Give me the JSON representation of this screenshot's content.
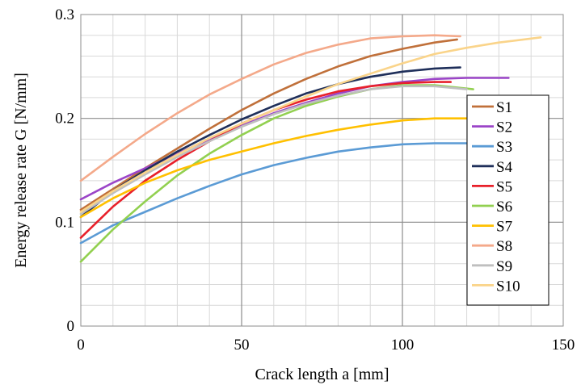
{
  "chart_data": {
    "type": "line",
    "title": "",
    "xlabel": "Crack length a [mm]",
    "ylabel": "Energy release rate G [N/mm]",
    "xlim": [
      0,
      150
    ],
    "ylim": [
      0,
      0.3
    ],
    "x_ticks": [
      0,
      50,
      100,
      150
    ],
    "y_ticks": [
      0,
      0.1,
      0.2,
      0.3
    ],
    "x_tick_labels": [
      "0",
      "50",
      "100",
      "150"
    ],
    "y_tick_labels": [
      "0",
      "0.1",
      "0.2",
      "0.3"
    ],
    "grid": true,
    "legend_position": "right",
    "series": [
      {
        "name": "S1",
        "color": "#C0703A",
        "x": [
          0,
          10,
          20,
          30,
          40,
          50,
          60,
          70,
          80,
          90,
          100,
          110,
          117
        ],
        "y": [
          0.112,
          0.132,
          0.152,
          0.171,
          0.19,
          0.208,
          0.224,
          0.238,
          0.25,
          0.26,
          0.267,
          0.273,
          0.276
        ]
      },
      {
        "name": "S2",
        "color": "#9B45C8",
        "x": [
          0,
          10,
          20,
          30,
          40,
          50,
          60,
          70,
          80,
          90,
          100,
          110,
          120,
          133
        ],
        "y": [
          0.122,
          0.138,
          0.152,
          0.166,
          0.18,
          0.193,
          0.205,
          0.215,
          0.224,
          0.231,
          0.235,
          0.238,
          0.239,
          0.239
        ]
      },
      {
        "name": "S3",
        "color": "#5B9BD5",
        "x": [
          0,
          10,
          20,
          30,
          40,
          50,
          60,
          70,
          80,
          90,
          100,
          110,
          120
        ],
        "y": [
          0.08,
          0.097,
          0.11,
          0.123,
          0.135,
          0.146,
          0.155,
          0.162,
          0.168,
          0.172,
          0.175,
          0.176,
          0.176
        ]
      },
      {
        "name": "S4",
        "color": "#1F2F5A",
        "x": [
          0,
          10,
          20,
          30,
          40,
          50,
          60,
          70,
          80,
          90,
          100,
          110,
          118
        ],
        "y": [
          0.105,
          0.13,
          0.15,
          0.168,
          0.184,
          0.199,
          0.212,
          0.224,
          0.233,
          0.24,
          0.245,
          0.248,
          0.249
        ]
      },
      {
        "name": "S5",
        "color": "#E8202A",
        "x": [
          0,
          10,
          20,
          30,
          40,
          50,
          60,
          70,
          80,
          90,
          100,
          110,
          115
        ],
        "y": [
          0.085,
          0.115,
          0.14,
          0.16,
          0.178,
          0.195,
          0.208,
          0.218,
          0.226,
          0.231,
          0.234,
          0.235,
          0.235
        ]
      },
      {
        "name": "S6",
        "color": "#92D050",
        "x": [
          0,
          10,
          20,
          30,
          40,
          50,
          60,
          70,
          80,
          90,
          100,
          110,
          122
        ],
        "y": [
          0.062,
          0.093,
          0.12,
          0.145,
          0.166,
          0.184,
          0.2,
          0.212,
          0.221,
          0.228,
          0.232,
          0.232,
          0.228
        ]
      },
      {
        "name": "S7",
        "color": "#FFC000",
        "x": [
          0,
          10,
          20,
          30,
          40,
          50,
          60,
          70,
          80,
          90,
          100,
          110,
          120
        ],
        "y": [
          0.105,
          0.123,
          0.138,
          0.15,
          0.16,
          0.168,
          0.176,
          0.183,
          0.189,
          0.194,
          0.198,
          0.2,
          0.2
        ]
      },
      {
        "name": "S8",
        "color": "#F4A98A",
        "x": [
          0,
          10,
          20,
          30,
          40,
          50,
          60,
          70,
          80,
          90,
          100,
          110,
          118
        ],
        "y": [
          0.14,
          0.163,
          0.185,
          0.205,
          0.223,
          0.238,
          0.252,
          0.263,
          0.271,
          0.277,
          0.279,
          0.28,
          0.279
        ]
      },
      {
        "name": "S9",
        "color": "#BFBFBF",
        "x": [
          0,
          10,
          20,
          30,
          40,
          50,
          60,
          70,
          80,
          90,
          100,
          110,
          120
        ],
        "y": [
          0.108,
          0.128,
          0.146,
          0.163,
          0.178,
          0.192,
          0.204,
          0.214,
          0.222,
          0.228,
          0.231,
          0.231,
          0.228
        ]
      },
      {
        "name": "S10",
        "color": "#FAD48A",
        "x": [
          0,
          10,
          20,
          30,
          40,
          50,
          60,
          70,
          80,
          90,
          100,
          110,
          120,
          130,
          143
        ],
        "y": [
          0.11,
          0.13,
          0.148,
          0.165,
          0.181,
          0.195,
          0.208,
          0.221,
          0.233,
          0.243,
          0.253,
          0.262,
          0.268,
          0.273,
          0.278
        ]
      }
    ]
  }
}
